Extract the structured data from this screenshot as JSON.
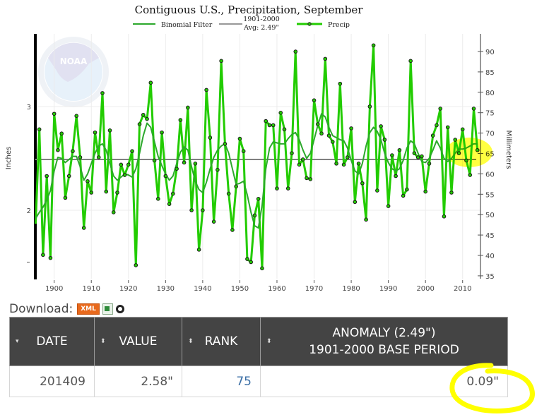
{
  "chart_data": {
    "type": "line",
    "title": "Contiguous U.S., Precipitation, September",
    "xlabel": "",
    "ylabel": "Inches",
    "ylabel_right": "Millimeters",
    "legend": [
      {
        "name": "Binomial Filter",
        "color": "#2ca82c"
      },
      {
        "name": "1901-2000 Avg: 2.49\"",
        "line1": "1901-2000",
        "line2": "Avg: 2.49\"",
        "color": "#777777"
      },
      {
        "name": "Precip",
        "color": "#22cc00"
      }
    ],
    "x_ticks": [
      1900,
      1910,
      1920,
      1930,
      1940,
      1950,
      1960,
      1970,
      1980,
      1990,
      2000,
      2010
    ],
    "y_ticks_left": [
      2,
      3
    ],
    "y_ticks_right": [
      35,
      40,
      45,
      50,
      55,
      60,
      65,
      70,
      75,
      80,
      85,
      90
    ],
    "xlim": [
      1895,
      2014
    ],
    "ylim_inches": [
      1.33,
      3.62
    ],
    "ylim_mm": [
      35,
      92
    ],
    "average": 2.49,
    "x": [
      1895,
      1896,
      1897,
      1898,
      1899,
      1900,
      1901,
      1902,
      1903,
      1904,
      1905,
      1906,
      1907,
      1908,
      1909,
      1910,
      1911,
      1912,
      1913,
      1914,
      1915,
      1916,
      1917,
      1918,
      1919,
      1920,
      1921,
      1922,
      1923,
      1924,
      1925,
      1926,
      1927,
      1928,
      1929,
      1930,
      1931,
      1932,
      1933,
      1934,
      1935,
      1936,
      1937,
      1938,
      1939,
      1940,
      1941,
      1942,
      1943,
      1944,
      1945,
      1946,
      1947,
      1948,
      1949,
      1950,
      1951,
      1952,
      1953,
      1954,
      1955,
      1956,
      1957,
      1958,
      1959,
      1960,
      1961,
      1962,
      1963,
      1964,
      1965,
      1966,
      1967,
      1968,
      1969,
      1970,
      1971,
      1972,
      1973,
      1974,
      1975,
      1976,
      1977,
      1978,
      1979,
      1980,
      1981,
      1982,
      1983,
      1984,
      1985,
      1986,
      1987,
      1988,
      1989,
      1990,
      1991,
      1992,
      1993,
      1994,
      1995,
      1996,
      1997,
      1998,
      1999,
      2000,
      2001,
      2002,
      2003,
      2004,
      2005,
      2006,
      2007,
      2008,
      2009,
      2010,
      2011,
      2012,
      2013,
      2014
    ],
    "series": [
      {
        "name": "Precip",
        "values": [
          1.87,
          2.78,
          1.57,
          2.33,
          1.54,
          2.93,
          2.58,
          2.74,
          2.12,
          2.33,
          2.57,
          2.91,
          2.51,
          1.83,
          2.28,
          2.17,
          2.75,
          2.51,
          3.13,
          2.18,
          2.77,
          1.98,
          2.17,
          2.44,
          2.34,
          2.44,
          2.57,
          1.47,
          2.83,
          2.92,
          2.88,
          3.23,
          2.48,
          2.11,
          2.75,
          2.33,
          2.06,
          2.16,
          2.4,
          2.87,
          2.46,
          2.99,
          2.0,
          2.45,
          1.62,
          2.0,
          3.16,
          2.7,
          1.89,
          2.39,
          3.44,
          2.64,
          2.16,
          1.81,
          2.23,
          2.69,
          2.57,
          1.53,
          1.5,
          1.95,
          2.11,
          1.44,
          2.86,
          2.82,
          2.82,
          2.21,
          2.94,
          2.78,
          2.21,
          2.55,
          3.53,
          2.44,
          2.49,
          2.31,
          2.3,
          3.06,
          2.83,
          2.74,
          3.46,
          2.72,
          2.66,
          2.45,
          3.22,
          2.44,
          2.51,
          2.79,
          2.08,
          2.45,
          2.26,
          1.91,
          3.0,
          3.59,
          2.19,
          2.81,
          2.68,
          2.04,
          2.53,
          2.33,
          2.58,
          2.14,
          2.2,
          3.44,
          2.55,
          2.51,
          2.52,
          2.18,
          2.45,
          2.72,
          2.82,
          2.98,
          1.94,
          2.8,
          2.17,
          2.68,
          2.55,
          2.78,
          2.48,
          2.34,
          2.98,
          2.58
        ]
      },
      {
        "name": "Binomial Filter",
        "values": [
          1.92,
          1.98,
          2.03,
          2.1,
          2.19,
          2.38,
          2.51,
          2.5,
          2.46,
          2.49,
          2.52,
          2.52,
          2.42,
          2.29,
          2.35,
          2.45,
          2.55,
          2.62,
          2.64,
          2.58,
          2.45,
          2.33,
          2.29,
          2.32,
          2.35,
          2.34,
          2.32,
          2.4,
          2.55,
          2.72,
          2.84,
          2.8,
          2.66,
          2.52,
          2.43,
          2.35,
          2.29,
          2.33,
          2.45,
          2.56,
          2.61,
          2.58,
          2.42,
          2.28,
          2.2,
          2.17,
          2.27,
          2.4,
          2.51,
          2.58,
          2.62,
          2.64,
          2.55,
          2.4,
          2.25,
          2.26,
          2.28,
          2.15,
          1.98,
          1.85,
          1.83,
          2.05,
          2.4,
          2.6,
          2.66,
          2.65,
          2.64,
          2.64,
          2.69,
          2.73,
          2.75,
          2.68,
          2.58,
          2.5,
          2.55,
          2.68,
          2.82,
          2.93,
          2.9,
          2.8,
          2.72,
          2.7,
          2.68,
          2.67,
          2.6,
          2.48,
          2.38,
          2.35,
          2.45,
          2.62,
          2.75,
          2.8,
          2.76,
          2.68,
          2.55,
          2.46,
          2.4,
          2.38,
          2.4,
          2.48,
          2.6,
          2.67,
          2.64,
          2.55,
          2.47,
          2.46,
          2.5,
          2.58,
          2.67,
          2.6,
          2.5,
          2.47,
          2.5,
          2.55,
          2.59,
          2.59,
          2.6,
          2.62,
          2.64,
          2.64
        ]
      }
    ]
  },
  "download": {
    "label": "Download:",
    "xml_label": "XML"
  },
  "table": {
    "headers": [
      {
        "label": "DATE",
        "sort_icon": "sort-desc-icon",
        "sort_glyph": "▾"
      },
      {
        "label": "VALUE",
        "sort_icon": "sort-both-icon",
        "sort_glyph": "⬍"
      },
      {
        "label": "RANK",
        "sort_icon": "sort-both-icon",
        "sort_glyph": "⬍"
      },
      {
        "label_line1": "ANOMALY (2.49\")",
        "label_line2": "1901-2000 BASE PERIOD",
        "sort_icon": "sort-both-icon",
        "sort_glyph": "⬍"
      }
    ],
    "rows": [
      {
        "date": "201409",
        "value": "2.58\"",
        "rank": "75",
        "anomaly": "0.09\""
      }
    ]
  },
  "colors": {
    "precip_line": "#22cc00",
    "filter_line": "#2ca82c",
    "avg_line": "#808080",
    "header_bg": "#444444",
    "rank_link": "#3a6ea5",
    "highlight": "#ffff00"
  }
}
